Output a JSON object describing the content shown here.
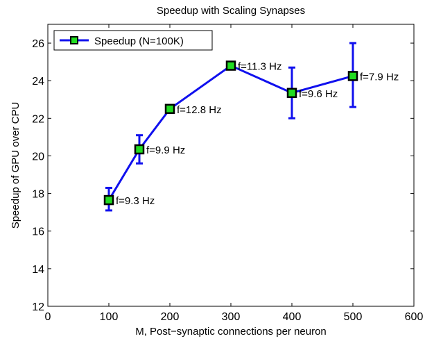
{
  "chart_data": {
    "type": "line",
    "title": "Speedup with Scaling Synapses",
    "xlabel": "M, Post−synaptic connections per neuron",
    "ylabel": "Speedup of GPU over CPU",
    "xlim": [
      0,
      600
    ],
    "ylim": [
      12,
      27
    ],
    "x_ticks": [
      0,
      100,
      200,
      300,
      400,
      500,
      600
    ],
    "y_ticks": [
      12,
      14,
      16,
      18,
      20,
      22,
      24,
      26
    ],
    "grid": false,
    "legend_position": "top-left",
    "colors": {
      "line": "#1010ee",
      "marker_fill": "#22dd22",
      "marker_edge": "#000000",
      "error_bar": "#1010ee"
    },
    "series": [
      {
        "name": "Speedup (N=100K)",
        "x": [
          100,
          150,
          200,
          300,
          400,
          500
        ],
        "y": [
          17.65,
          20.35,
          22.5,
          24.8,
          23.35,
          24.25
        ],
        "err_low": [
          17.1,
          19.6,
          22.4,
          24.7,
          22.0,
          22.6
        ],
        "err_high": [
          18.3,
          21.1,
          22.6,
          24.9,
          24.7,
          26.0
        ],
        "labels": [
          "f=9.3 Hz",
          "f=9.9 Hz",
          "f=12.8 Hz",
          "f=11.3 Hz",
          "f=9.6 Hz",
          "f=7.9 Hz"
        ]
      }
    ]
  }
}
